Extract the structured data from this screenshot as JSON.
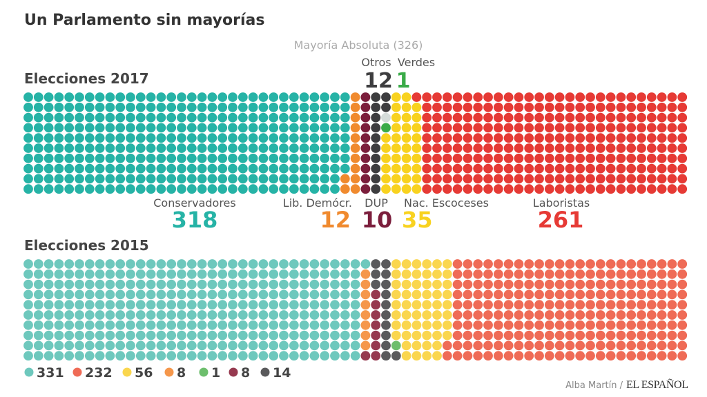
{
  "title": "Un Parlamento sin mayorías",
  "chart_data": [
    {
      "type": "waffle",
      "title": "Elecciones 2017",
      "rows": 10,
      "total_seats": 650,
      "majority_label": "Mayoría Absoluta (326)",
      "majority": 326,
      "series": [
        {
          "name": "Conservadores",
          "value": 318,
          "color": "#26b3a6"
        },
        {
          "name": "Lib. Demócr.",
          "value": 12,
          "color": "#f08a2e"
        },
        {
          "name": "DUP",
          "value": 10,
          "color": "#7b1e3c"
        },
        {
          "name": "Otros",
          "value": 12,
          "color": "#3d3d3f"
        },
        {
          "name": "",
          "value": 1,
          "color": "#d5dcda"
        },
        {
          "name": "Verdes",
          "value": 1,
          "color": "#3aab48"
        },
        {
          "name": "Nac. Escoceses",
          "value": 35,
          "color": "#f8d21f"
        },
        {
          "name": "Laboristas",
          "value": 261,
          "color": "#e63a35"
        }
      ]
    },
    {
      "type": "waffle",
      "title": "Elecciones 2015",
      "rows": 10,
      "total_seats": 650,
      "series": [
        {
          "value": 331,
          "color": "#6ec8bd"
        },
        {
          "value": 8,
          "color": "#f5974b"
        },
        {
          "value": 8,
          "color": "#96394f"
        },
        {
          "value": 14,
          "color": "#5a5a5c"
        },
        {
          "value": 1,
          "color": "#6dbe6d"
        },
        {
          "value": 56,
          "color": "#fad64e"
        },
        {
          "value": 232,
          "color": "#ef6b56"
        }
      ],
      "legend": [
        {
          "label": "331",
          "color": "#6ec8bd"
        },
        {
          "label": "232",
          "color": "#ef6b56"
        },
        {
          "label": "56",
          "color": "#fad64e"
        },
        {
          "label": "8",
          "color": "#f5974b"
        },
        {
          "label": "1",
          "color": "#6dbe6d"
        },
        {
          "label": "8",
          "color": "#96394f"
        },
        {
          "label": "14",
          "color": "#5a5a5c"
        }
      ]
    }
  ],
  "labels2017": {
    "conservadores": {
      "name": "Conservadores",
      "value": "318"
    },
    "libdem": {
      "name": "Lib. Demócr.",
      "value": "12"
    },
    "dup": {
      "name": "DUP",
      "value": "10"
    },
    "snp": {
      "name": "Nac. Escoceses",
      "value": "35"
    },
    "laboristas": {
      "name": "Laboristas",
      "value": "261"
    },
    "otros": {
      "name": "Otros",
      "value": "12"
    },
    "verdes": {
      "name": "Verdes",
      "value": "1"
    }
  },
  "footer": {
    "author": "Alba Martín /",
    "brand": "EL ESPAÑOL"
  }
}
